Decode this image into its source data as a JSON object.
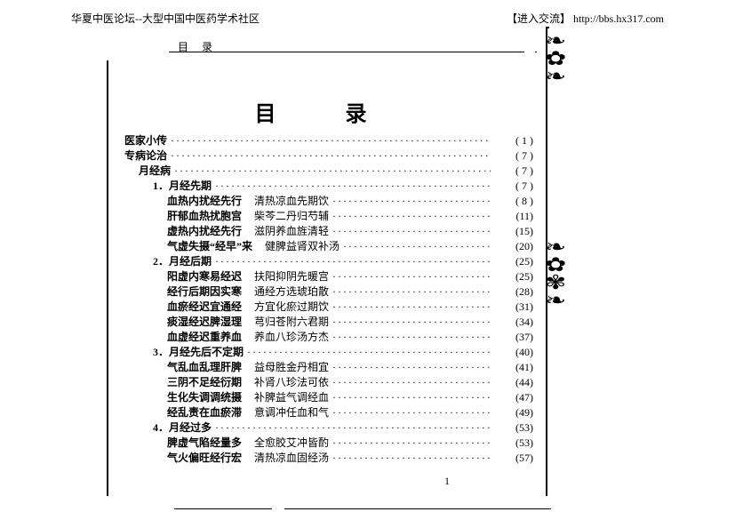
{
  "header": {
    "site": "华夏中医论坛--大型中国中医药学术社区",
    "linklabel": "【进入交流】",
    "url": "http://bbs.hx317.com"
  },
  "tab": "目  录",
  "title": "目    录",
  "toc": [
    {
      "level": 0,
      "label": "医家小传",
      "sub": "",
      "page": "( 1 )"
    },
    {
      "level": 0,
      "label": "专病论治",
      "sub": "",
      "page": "( 7 )"
    },
    {
      "level": 1,
      "label": "月经病",
      "sub": "",
      "page": "( 7 )"
    },
    {
      "level": 2,
      "label": "1．月经先期",
      "sub": "",
      "page": "( 7 )"
    },
    {
      "level": 3,
      "label": "血热内扰经先行",
      "sub": "清热凉血先期饮",
      "page": "( 8 )"
    },
    {
      "level": 3,
      "label": "肝郁血热扰胞宫",
      "sub": "柴芩二丹归芍辅",
      "page": "(11)"
    },
    {
      "level": 3,
      "label": "虚热内扰经先行",
      "sub": "滋阴养血旌清轻",
      "page": "(15)"
    },
    {
      "level": 3,
      "label": "气虚失摄“经早”来",
      "sub": "健脾益肾双补汤",
      "page": "(20)"
    },
    {
      "level": 2,
      "label": "2．月经后期",
      "sub": "",
      "page": "(25)"
    },
    {
      "level": 3,
      "label": "阳虚内寒易经迟",
      "sub": "扶阳抑阴先暖宫",
      "page": "(25)"
    },
    {
      "level": 3,
      "label": "经行后期因实寒",
      "sub": "通经方选琥珀散",
      "page": "(28)"
    },
    {
      "level": 3,
      "label": "血瘀经迟宜通经",
      "sub": "方宜化瘀过期饮",
      "page": "(31)"
    },
    {
      "level": 3,
      "label": "痰湿经迟脾湿理",
      "sub": "芎归苍附六君期",
      "page": "(34)"
    },
    {
      "level": 3,
      "label": "血虚经迟重养血",
      "sub": "养血八珍汤方杰",
      "page": "(37)"
    },
    {
      "level": 2,
      "label": "3．月经先后不定期",
      "sub": "",
      "page": "(40)"
    },
    {
      "level": 3,
      "label": "气乱血乱理肝脾",
      "sub": "益母胜金丹相宜",
      "page": "(41)"
    },
    {
      "level": 3,
      "label": "三阴不足经衍期",
      "sub": "补肾八珍法可依",
      "page": "(44)"
    },
    {
      "level": 3,
      "label": "生化失调调统摄",
      "sub": "补脾益气调经血",
      "page": "(47)"
    },
    {
      "level": 3,
      "label": "经乱责在血瘀滞",
      "sub": "意调冲任血和气",
      "page": "(49)"
    },
    {
      "level": 2,
      "label": "4．月经过多",
      "sub": "",
      "page": "(53)"
    },
    {
      "level": 3,
      "label": "脾虚气陷经量多",
      "sub": "全愈胶艾冲皆酌",
      "page": "(53)"
    },
    {
      "level": 3,
      "label": "气火偏旺经行宏",
      "sub": "清热凉血固经汤",
      "page": "(57)"
    }
  ],
  "pagenum": "1",
  "colors": {
    "text": "#000000",
    "bg": "#ffffff"
  }
}
